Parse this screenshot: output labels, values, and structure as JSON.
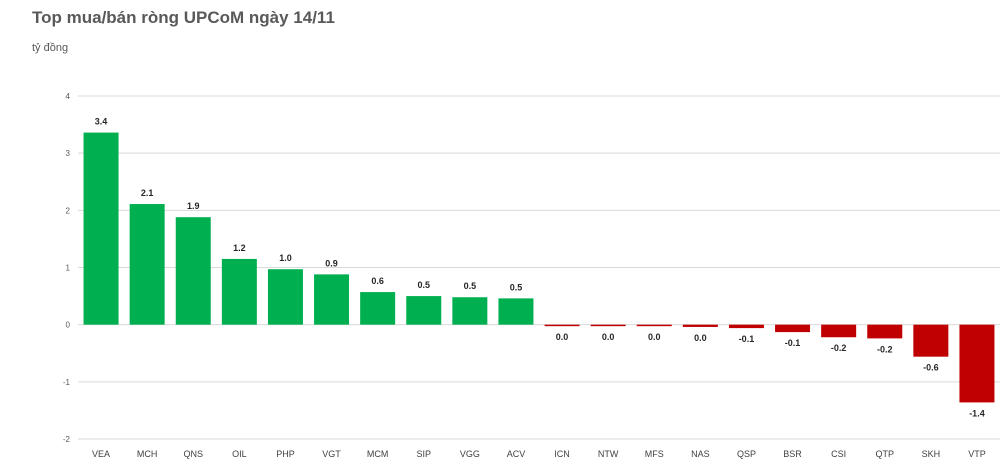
{
  "chart_data": {
    "type": "bar",
    "title": "Top mua/bán ròng UPCoM ngày 14/11",
    "ylabel": "tỷ đồng",
    "xlabel": "",
    "ylim": [
      -2,
      4
    ],
    "yticks": [
      4,
      3,
      2,
      1,
      0,
      -1,
      -2
    ],
    "grid": true,
    "positive_color": "#00B050",
    "negative_color": "#C00000",
    "categories": [
      "VEA",
      "MCH",
      "QNS",
      "OIL",
      "PHP",
      "VGT",
      "MCM",
      "SIP",
      "VGG",
      "ACV",
      "ICN",
      "NTW",
      "MFS",
      "NAS",
      "QSP",
      "BSR",
      "CSI",
      "QTP",
      "SKH",
      "VTP"
    ],
    "values": [
      3.36,
      2.11,
      1.88,
      1.15,
      0.97,
      0.88,
      0.57,
      0.5,
      0.48,
      0.46,
      -0.02,
      -0.02,
      -0.02,
      -0.04,
      -0.06,
      -0.13,
      -0.22,
      -0.24,
      -0.56,
      -1.36
    ],
    "data_labels": [
      "3.4",
      "2.1",
      "1.9",
      "1.2",
      "1.0",
      "0.9",
      "0.6",
      "0.5",
      "0.5",
      "0.5",
      "0.0",
      "0.0",
      "0.0",
      "0.0",
      "-0.1",
      "-0.1",
      "-0.2",
      "-0.2",
      "-0.6",
      "-1.4"
    ]
  }
}
